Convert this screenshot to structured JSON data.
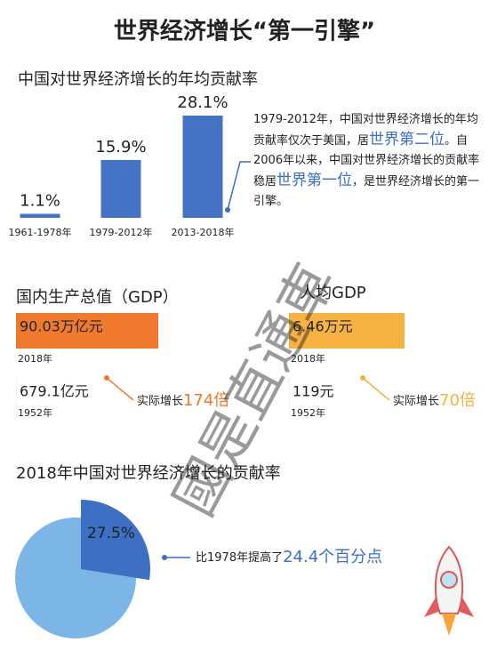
{
  "title": "世界经济增长“第一引擎”",
  "watermark": "國是直通車",
  "chart_data": [
    {
      "type": "bar",
      "title": "中国对世界经济增长的年均贡献率",
      "categories": [
        "1961-1978年",
        "1979-2012年",
        "2013-2018年"
      ],
      "values": [
        1.1,
        15.9,
        28.1
      ],
      "value_labels": [
        "1.1%",
        "15.9%",
        "28.1%"
      ],
      "color": "#4472c4",
      "annotation": [
        "1979-2012年，中国对世界经济增长的年均贡献率仅次于美国，居",
        "世界第二位",
        "。自2006年以来，中国对世界经济增长的贡献率稳居",
        "世界第一位",
        "，是世界经济增长的第一引擎。"
      ]
    },
    {
      "type": "hbar",
      "title": "国内生产总值（GDP）",
      "categories": [
        "2018年",
        "1952年"
      ],
      "values": [
        900300,
        679.1
      ],
      "value_labels": [
        "90.03万亿元",
        "679.1亿元"
      ],
      "color": "#ef7a2e",
      "annotation": [
        "实际增长",
        "174倍"
      ]
    },
    {
      "type": "hbar",
      "title": "人均GDP",
      "categories": [
        "2018年",
        "1952年"
      ],
      "values": [
        64600,
        119
      ],
      "value_labels": [
        "6.46万元",
        "119元"
      ],
      "color": "#f6b343",
      "annotation": [
        "实际增长",
        "70倍"
      ]
    },
    {
      "type": "pie",
      "title": "2018年中国对世界经济增长的贡献率",
      "values": [
        27.5
      ],
      "value_labels": [
        "27.5%"
      ],
      "colors": [
        "#3d6fc2",
        "#7bb6e6"
      ],
      "annotation": [
        "比1978年提高了",
        "24.4个百分点"
      ]
    }
  ]
}
